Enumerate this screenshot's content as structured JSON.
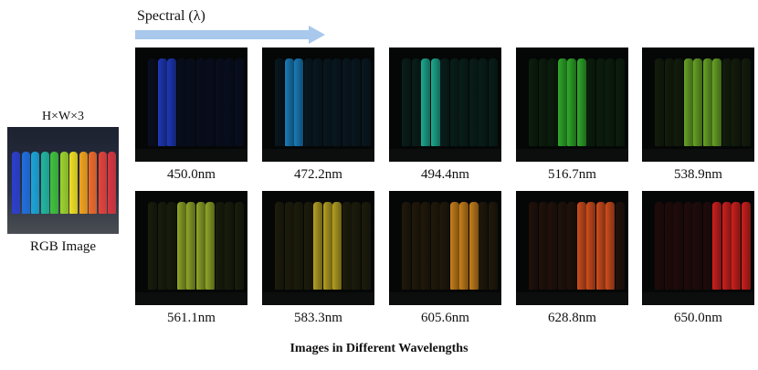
{
  "spectral": {
    "label": "Spectral (λ)"
  },
  "rgb": {
    "size_label": "H×W×3",
    "label": "RGB Image",
    "bar_colors": [
      "#2b3fd0",
      "#1f6fe0",
      "#1aa6d9",
      "#20b8a0",
      "#3fc23c",
      "#9cd42a",
      "#f0e020",
      "#f3a21c",
      "#f06a2a",
      "#e8423a",
      "#d9363f"
    ]
  },
  "bands": [
    {
      "wavelength": "450.0nm",
      "color": "#1f3cc8",
      "bright": [
        1,
        2
      ]
    },
    {
      "wavelength": "472.2nm",
      "color": "#1a86c9",
      "bright": [
        1,
        2
      ]
    },
    {
      "wavelength": "494.4nm",
      "color": "#1fb89b",
      "bright": [
        2,
        3
      ]
    },
    {
      "wavelength": "516.7nm",
      "color": "#33b82c",
      "bright": [
        3,
        4,
        5
      ]
    },
    {
      "wavelength": "538.9nm",
      "color": "#6fb028",
      "bright": [
        3,
        4,
        5,
        6
      ]
    },
    {
      "wavelength": "561.1nm",
      "color": "#9cb32a",
      "bright": [
        3,
        4,
        5,
        6
      ]
    },
    {
      "wavelength": "583.3nm",
      "color": "#c4ad24",
      "bright": [
        4,
        5,
        6
      ]
    },
    {
      "wavelength": "605.6nm",
      "color": "#d98a1c",
      "bright": [
        5,
        6,
        7
      ]
    },
    {
      "wavelength": "628.8nm",
      "color": "#e2531e",
      "bright": [
        5,
        6,
        7,
        8
      ]
    },
    {
      "wavelength": "650.0nm",
      "color": "#e0221f",
      "bright": [
        6,
        7,
        8,
        9
      ]
    }
  ],
  "caption": "Images in Different Wavelengths"
}
